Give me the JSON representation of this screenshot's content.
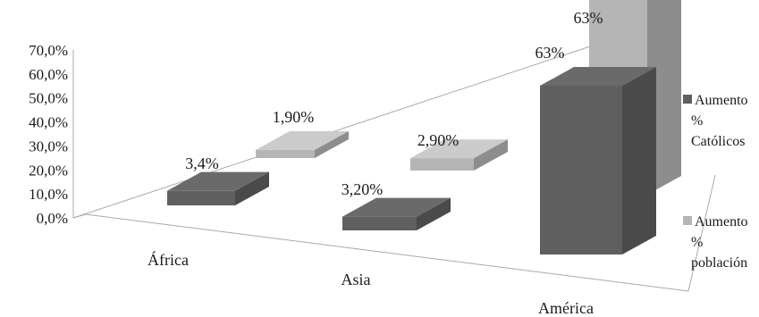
{
  "chart_data": {
    "type": "bar",
    "categories": [
      "África",
      "Asia",
      "América"
    ],
    "ylim": [
      0,
      70
    ],
    "y_ticks": [
      "0,0%",
      "10,0%",
      "20,0%",
      "30,0%",
      "40,0%",
      "50,0%",
      "60,0%",
      "70,0%"
    ],
    "series": [
      {
        "name": "Aumento % Católicos",
        "legend_lines": [
          "Aumento",
          "%",
          "Católicos"
        ],
        "values": [
          3.4,
          3.2,
          63
        ],
        "labels": [
          "3,4%",
          "3,20%",
          "63%"
        ],
        "color": "#5f5f5f"
      },
      {
        "name": "Aumento % población",
        "legend_lines": [
          "Aumento",
          "%",
          "población"
        ],
        "values": [
          1.9,
          2.9,
          63
        ],
        "labels": [
          "1,90%",
          "2,90%",
          "63%"
        ],
        "color": "#b5b5b5"
      }
    ],
    "legend_position": "right",
    "grid": false,
    "style": "3d-column"
  }
}
